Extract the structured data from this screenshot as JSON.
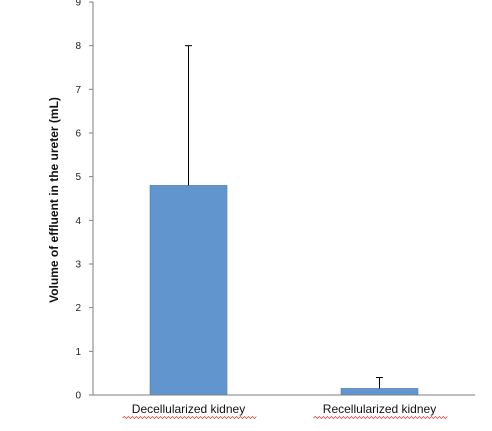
{
  "chart_data": {
    "type": "bar",
    "title": "",
    "xlabel": "",
    "ylabel": "Volume of effluent in the ureter (mL)",
    "ylim": [
      0,
      9
    ],
    "yticks": [
      0,
      1,
      2,
      3,
      4,
      5,
      6,
      7,
      8,
      9
    ],
    "grid": false,
    "categories": [
      "Decellularized kidney",
      "Recellularized kidney"
    ],
    "values": [
      4.8,
      0.15
    ],
    "error_upper": [
      8.0,
      0.4
    ],
    "colors": {
      "bar": "#6096CD",
      "bar_edge": "#4F7FB3",
      "axis": "#7F7F7F",
      "error": "#000000",
      "underline": "#E03030"
    }
  }
}
